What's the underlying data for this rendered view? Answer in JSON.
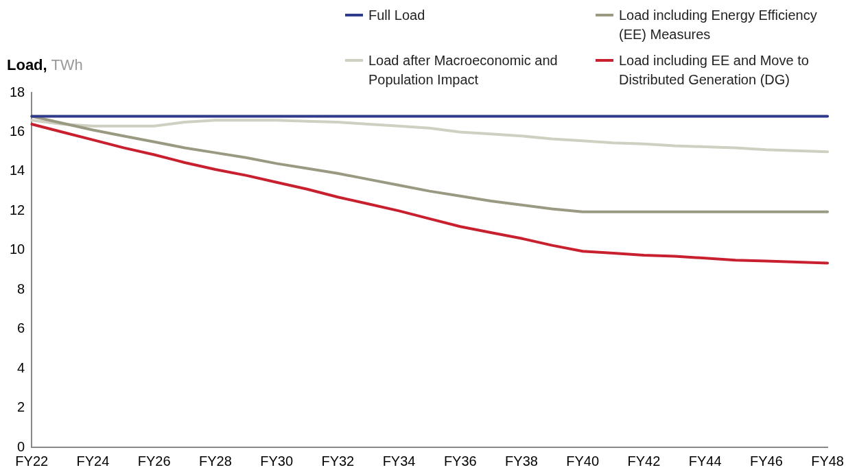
{
  "chart_data": {
    "type": "line",
    "ylabel": "Load, TWh",
    "categories": [
      "FY22",
      null,
      "FY24",
      null,
      "FY26",
      null,
      "FY28",
      null,
      "FY30",
      null,
      "FY32",
      null,
      "FY34",
      null,
      "FY36",
      null,
      "FY38",
      null,
      "FY40",
      null,
      "FY42",
      null,
      "FY44",
      null,
      "FY46",
      null,
      "FY48"
    ],
    "series": [
      {
        "name": "Full Load",
        "color": "#2e3a8c",
        "values": [
          16.8,
          16.8,
          16.8,
          16.8,
          16.8,
          16.8,
          16.8,
          16.8,
          16.8,
          16.8,
          16.8,
          16.8,
          16.8,
          16.8,
          16.8,
          16.8,
          16.8,
          16.8,
          16.8,
          16.8,
          16.8,
          16.8,
          16.8,
          16.8,
          16.8,
          16.8,
          16.8
        ]
      },
      {
        "name": "Load including Energy Efficiency (EE) Measures",
        "color": "#9a9a82",
        "values": [
          16.8,
          16.45,
          16.1,
          15.8,
          15.5,
          15.2,
          14.95,
          14.7,
          14.4,
          14.15,
          13.9,
          13.6,
          13.3,
          13.0,
          12.75,
          12.5,
          12.3,
          12.1,
          11.95,
          11.95,
          11.95,
          11.95,
          11.95,
          11.95,
          11.95,
          11.95,
          11.95
        ]
      },
      {
        "name": "Load after Macroeconomic and Population Impact",
        "color": "#cfcfc2",
        "values": [
          16.6,
          16.4,
          16.3,
          16.3,
          16.3,
          16.5,
          16.6,
          16.6,
          16.6,
          16.55,
          16.5,
          16.4,
          16.3,
          16.2,
          16.0,
          15.9,
          15.8,
          15.65,
          15.55,
          15.45,
          15.4,
          15.3,
          15.25,
          15.2,
          15.1,
          15.05,
          15.0
        ]
      },
      {
        "name": "Load including EE and Move to Distributed Generation (DG)",
        "color": "#c8202f",
        "values": [
          16.4,
          16.0,
          15.6,
          15.2,
          14.85,
          14.45,
          14.1,
          13.8,
          13.45,
          13.1,
          12.7,
          12.35,
          12.0,
          11.6,
          11.2,
          10.9,
          10.6,
          10.25,
          9.95,
          9.85,
          9.75,
          9.7,
          9.6,
          9.5,
          9.45,
          9.4,
          9.35
        ]
      }
    ],
    "ylim": [
      0,
      18
    ],
    "yticks": [
      0,
      2,
      4,
      6,
      8,
      10,
      12,
      14,
      16,
      18
    ],
    "grid": false,
    "legend": "top right",
    "marker": "none",
    "line_style": "solid"
  }
}
